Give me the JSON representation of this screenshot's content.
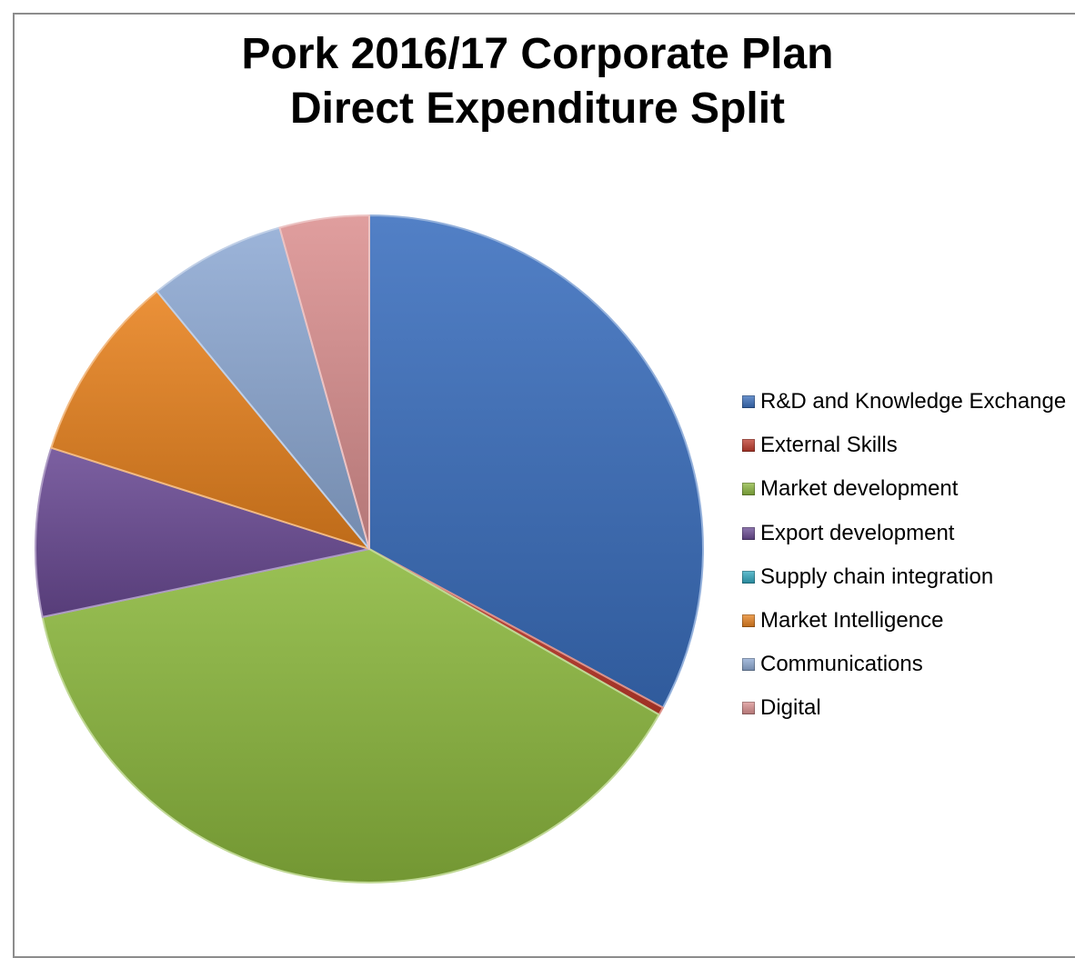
{
  "chart_data": {
    "type": "pie",
    "title": [
      "Pork 2016/17 Corporate Plan",
      "Direct Expenditure Split"
    ],
    "categories": [
      "R&D and Knowledge Exchange",
      "External Skills",
      "Market development",
      "Export development",
      "Supply chain integration",
      "Market Intelligence",
      "Communications",
      "Digital"
    ],
    "values": [
      34.2,
      0.4,
      40.0,
      8.5,
      0.0,
      9.5,
      6.9,
      4.5
    ],
    "colors": [
      "#3a6fbe",
      "#c0392b",
      "#8cb83e",
      "#6a4a94",
      "#2fa8bf",
      "#e8821e",
      "#8eaad4",
      "#dc9191"
    ],
    "legend_position": "right",
    "start_angle_deg": 0,
    "direction": "clockwise"
  }
}
